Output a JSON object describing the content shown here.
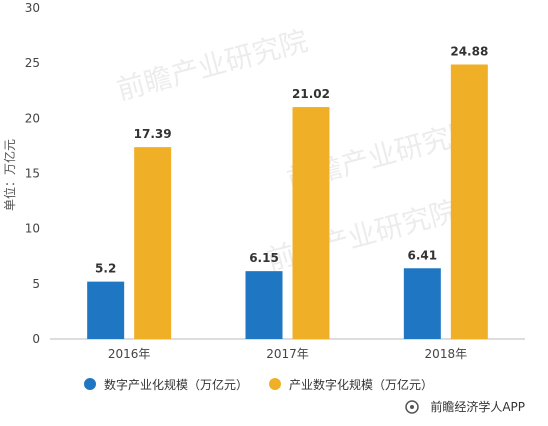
{
  "chart_data": {
    "type": "bar",
    "categories": [
      "2016年",
      "2017年",
      "2018年"
    ],
    "series": [
      {
        "name": "数字产业化规模（万亿元）",
        "values": [
          5.2,
          6.15,
          6.41
        ],
        "color": "#1f77c4"
      },
      {
        "name": "产业数字化规模（万亿元）",
        "values": [
          17.39,
          21.02,
          24.88
        ],
        "color": "#efb028"
      }
    ],
    "data_labels": [
      [
        "5.2",
        "6.15",
        "6.41"
      ],
      [
        "17.39",
        "21.02",
        "24.88"
      ]
    ],
    "ylabel": "单位：万亿元",
    "ylim": [
      0,
      30
    ],
    "yticks": [
      0,
      5,
      10,
      15,
      20,
      25,
      30
    ],
    "grid": false,
    "legend_position": "bottom"
  },
  "source_label": "前瞻经济学人APP",
  "watermark_text": "前瞻产业研究院"
}
